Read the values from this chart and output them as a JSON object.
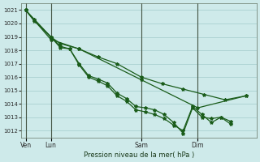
{
  "title": "Pression niveau de la mer( hPa )",
  "bg_color": "#ceeaea",
  "grid_color": "#aad0d0",
  "line_color": "#1a5c1a",
  "ylim": [
    1011.5,
    1021.5
  ],
  "yticks": [
    1012,
    1013,
    1014,
    1015,
    1016,
    1017,
    1018,
    1019,
    1020,
    1021
  ],
  "xtick_labels": [
    "Ven",
    "Lun",
    "Sam",
    "Dim"
  ],
  "xtick_positions": [
    0.0,
    1.2,
    5.5,
    8.2
  ],
  "xmax": 11.0,
  "vlines": [
    0.0,
    1.2,
    5.5,
    8.2
  ],
  "series1": {
    "x": [
      0.0,
      0.4,
      1.2,
      1.65,
      2.1,
      2.55,
      3.0,
      3.45,
      3.9,
      4.35,
      4.8,
      5.25,
      5.7,
      6.15,
      6.6,
      7.05,
      7.5,
      7.95,
      8.4,
      8.85,
      9.3,
      9.75
    ],
    "y": [
      1021.0,
      1020.3,
      1019.0,
      1018.2,
      1018.1,
      1017.0,
      1016.1,
      1015.85,
      1015.55,
      1014.8,
      1014.4,
      1013.8,
      1013.7,
      1013.55,
      1013.2,
      1012.6,
      1011.8,
      1013.7,
      1013.0,
      1012.9,
      1013.0,
      1012.7
    ]
  },
  "series2": {
    "x": [
      0.0,
      0.4,
      1.2,
      1.65,
      2.1,
      2.55,
      3.0,
      3.45,
      3.9,
      4.35,
      4.8,
      5.25,
      5.7,
      6.15,
      6.6,
      7.05,
      7.5,
      7.95,
      8.4,
      8.85,
      9.3,
      9.75
    ],
    "y": [
      1021.0,
      1020.2,
      1019.0,
      1018.3,
      1018.1,
      1016.9,
      1016.0,
      1015.7,
      1015.35,
      1014.6,
      1014.2,
      1013.55,
      1013.4,
      1013.2,
      1012.9,
      1012.4,
      1012.0,
      1013.8,
      1013.2,
      1012.6,
      1013.0,
      1012.5
    ]
  },
  "series3": {
    "x": [
      0.0,
      1.2,
      1.65,
      2.55,
      3.45,
      4.35,
      5.5,
      6.5,
      7.5,
      8.5,
      9.5,
      10.5
    ],
    "y": [
      1021.0,
      1019.0,
      1018.5,
      1018.1,
      1017.5,
      1017.0,
      1016.0,
      1015.5,
      1015.1,
      1014.7,
      1014.3,
      1014.6
    ]
  },
  "series4": {
    "x": [
      0.0,
      1.2,
      2.55,
      5.5,
      8.2,
      10.5
    ],
    "y": [
      1021.0,
      1018.8,
      1018.1,
      1015.8,
      1013.7,
      1014.6
    ]
  }
}
